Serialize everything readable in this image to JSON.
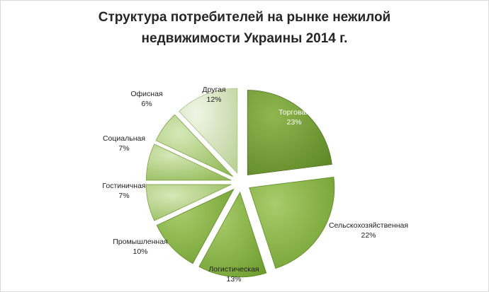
{
  "colors": {
    "accent": "#6e9a2e",
    "green_mid": "#86b43c",
    "green_light": "#b6d38a",
    "green_pale": "#dbe8c8",
    "label_text": "#1f1f1f"
  },
  "chart_data": {
    "type": "pie",
    "exploded": true,
    "title_lines": [
      "Структура потребителей на рынке нежилой",
      "недвижимости Украины 2014 г."
    ],
    "slices": [
      {
        "label": "Торговая",
        "value": 23,
        "value_label": "23%"
      },
      {
        "label": "Сельскохозяйственная",
        "value": 22,
        "value_label": "22%"
      },
      {
        "label": "Логистическая",
        "value": 13,
        "value_label": "13%"
      },
      {
        "label": "Промышленная",
        "value": 10,
        "value_label": "10%"
      },
      {
        "label": "Гостиничная",
        "value": 7,
        "value_label": "7%"
      },
      {
        "label": "Социальная",
        "value": 7,
        "value_label": "7%"
      },
      {
        "label": "Офисная",
        "value": 6,
        "value_label": "6%"
      },
      {
        "label": "Другая",
        "value": 12,
        "value_label": "12%"
      }
    ],
    "legend": "none",
    "data_labels": "category and percent"
  }
}
